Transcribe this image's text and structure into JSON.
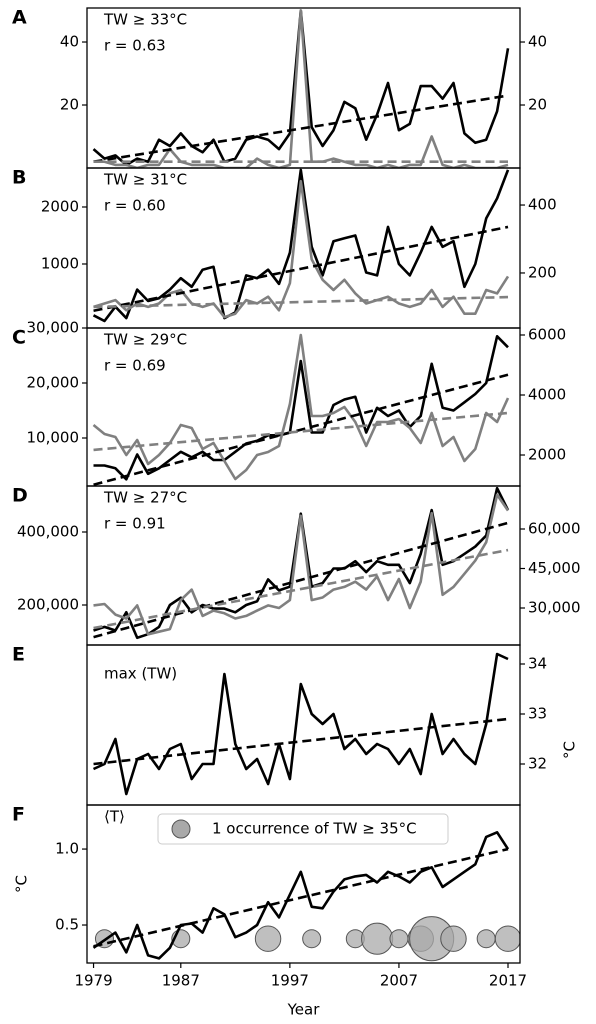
{
  "chart_data": [
    {
      "type": "line",
      "label": "A",
      "annotations": [
        "TW ≥ 33°C",
        "r = 0.63"
      ],
      "x": [
        1979,
        1980,
        1981,
        1982,
        1983,
        1984,
        1985,
        1986,
        1987,
        1988,
        1989,
        1990,
        1991,
        1992,
        1993,
        1994,
        1995,
        1996,
        1997,
        1998,
        1999,
        2000,
        2001,
        2002,
        2003,
        2004,
        2005,
        2006,
        2007,
        2008,
        2009,
        2010,
        2011,
        2012,
        2013,
        2014,
        2015,
        2016,
        2017
      ],
      "xlim": [
        1978.4,
        2018.1
      ],
      "ylim": [
        0,
        50.8
      ],
      "yticks": [
        20,
        40
      ],
      "y2lim": [
        0,
        50.8
      ],
      "y2ticks": [
        20,
        40
      ],
      "series": [
        {
          "color": "#000000",
          "values": [
            6,
            3,
            4,
            1,
            3,
            2,
            9,
            7,
            11,
            7,
            5,
            9,
            2,
            3,
            9,
            10,
            9,
            6,
            11,
            50,
            13,
            7,
            12,
            21,
            19,
            9,
            17,
            27,
            12,
            14,
            26,
            26,
            22,
            27,
            11,
            8,
            9,
            18,
            38
          ],
          "trend": [
            2,
            23
          ]
        },
        {
          "color": "#808080",
          "axis": "y2",
          "values": [
            2,
            2,
            1,
            1,
            0,
            1,
            1,
            6,
            2,
            1,
            1,
            1,
            0,
            0,
            0,
            3,
            1,
            0,
            1,
            50,
            2,
            2,
            3,
            2,
            1,
            1,
            0,
            1,
            0,
            1,
            1,
            10,
            1,
            0,
            1,
            0,
            0,
            0,
            1
          ],
          "trend": [
            2,
            2
          ]
        }
      ]
    },
    {
      "type": "line",
      "label": "B",
      "annotations": [
        "TW ≥ 31°C",
        "r = 0.60"
      ],
      "x": [
        1979,
        1980,
        1981,
        1982,
        1983,
        1984,
        1985,
        1986,
        1987,
        1988,
        1989,
        1990,
        1991,
        1992,
        1993,
        1994,
        1995,
        1996,
        1997,
        1998,
        1999,
        2000,
        2001,
        2002,
        2003,
        2004,
        2005,
        2006,
        2007,
        2008,
        2009,
        2010,
        2011,
        2012,
        2013,
        2014,
        2015,
        2016,
        2017
      ],
      "xlim": [
        1978.4,
        2018.1
      ],
      "ylim": [
        -123,
        2684
      ],
      "yticks": [
        1000,
        2000
      ],
      "y2lim": [
        38,
        509
      ],
      "y2ticks": [
        200,
        400
      ],
      "series": [
        {
          "color": "#000000",
          "values": [
            100,
            0,
            250,
            50,
            550,
            350,
            400,
            550,
            750,
            600,
            900,
            950,
            50,
            150,
            800,
            750,
            900,
            650,
            1200,
            2650,
            1300,
            800,
            1400,
            1450,
            1500,
            850,
            800,
            1650,
            1000,
            800,
            1200,
            1650,
            1300,
            1400,
            600,
            1000,
            1800,
            2150,
            2650
          ],
          "trend": [
            180,
            1650
          ]
        },
        {
          "color": "#808080",
          "axis": "y2",
          "values": [
            100,
            110,
            120,
            90,
            110,
            100,
            110,
            140,
            150,
            110,
            100,
            110,
            70,
            80,
            120,
            110,
            130,
            90,
            170,
            470,
            240,
            180,
            150,
            180,
            140,
            110,
            120,
            130,
            110,
            100,
            110,
            150,
            100,
            130,
            80,
            80,
            150,
            140,
            190
          ],
          "trend": [
            100,
            129
          ]
        }
      ]
    },
    {
      "type": "line",
      "label": "C",
      "annotations": [
        "TW ≥ 29°C",
        "r = 0.69"
      ],
      "x": [
        1979,
        1980,
        1981,
        1982,
        1983,
        1984,
        1985,
        1986,
        1987,
        1988,
        1989,
        1990,
        1991,
        1992,
        1993,
        1994,
        1995,
        1996,
        1997,
        1998,
        1999,
        2000,
        2001,
        2002,
        2003,
        2004,
        2005,
        2006,
        2007,
        2008,
        2009,
        2010,
        2011,
        2012,
        2013,
        2014,
        2015,
        2016,
        2017
      ],
      "xlim": [
        1978.4,
        2018.1
      ],
      "ylim": [
        1273,
        30000
      ],
      "yticks": [
        {
          "value": 10000,
          "label": "10,000"
        },
        {
          "value": 20000,
          "label": "20,000"
        },
        {
          "value": 30000,
          "label": "30,000"
        }
      ],
      "y2lim": [
        967,
        6233
      ],
      "y2ticks": [
        2000,
        4000,
        6000
      ],
      "series": [
        {
          "color": "#000000",
          "values": [
            5000,
            5000,
            4500,
            2500,
            7000,
            3500,
            4500,
            6000,
            7500,
            6500,
            7500,
            6000,
            6000,
            7500,
            9000,
            9500,
            10500,
            10500,
            11000,
            24000,
            11000,
            11000,
            16000,
            17000,
            17500,
            11000,
            15500,
            14000,
            15000,
            12000,
            14000,
            23500,
            15500,
            15000,
            16500,
            18000,
            20000,
            28500,
            26500
          ],
          "trend": [
            1500,
            21500
          ]
        },
        {
          "color": "#808080",
          "axis": "y2",
          "values": [
            3000,
            2700,
            2600,
            2000,
            2500,
            1700,
            2000,
            2400,
            3000,
            2900,
            2200,
            2400,
            1800,
            1200,
            1500,
            2000,
            2100,
            2300,
            3700,
            6000,
            3300,
            3300,
            3400,
            3600,
            3100,
            2300,
            3100,
            3100,
            3200,
            2900,
            2400,
            3400,
            2300,
            2600,
            1800,
            2200,
            3400,
            3100,
            3900
          ],
          "trend": [
            2170,
            3400
          ]
        }
      ]
    },
    {
      "type": "line",
      "label": "D",
      "annotations": [
        "TW ≥ 27°C",
        "r = 0.91"
      ],
      "x": [
        1979,
        1980,
        1981,
        1982,
        1983,
        1984,
        1985,
        1986,
        1987,
        1988,
        1989,
        1990,
        1991,
        1992,
        1993,
        1994,
        1995,
        1996,
        1997,
        1998,
        1999,
        2000,
        2001,
        2002,
        2003,
        2004,
        2005,
        2006,
        2007,
        2008,
        2009,
        2010,
        2011,
        2012,
        2013,
        2014,
        2015,
        2016,
        2017
      ],
      "xlim": [
        1978.4,
        2018.1
      ],
      "ylim": [
        90410,
        526027
      ],
      "yticks": [
        {
          "value": 200000,
          "label": "200,000"
        },
        {
          "value": 400000,
          "label": "400,000"
        }
      ],
      "y2lim": [
        15949,
        76329
      ],
      "y2ticks": [
        {
          "value": 30000,
          "label": "30,000"
        },
        {
          "value": 45000,
          "label": "45,000"
        },
        {
          "value": 60000,
          "label": "60,000"
        }
      ],
      "series": [
        {
          "color": "#000000",
          "values": [
            130000,
            140000,
            130000,
            180000,
            110000,
            120000,
            140000,
            200000,
            220000,
            180000,
            200000,
            190000,
            190000,
            180000,
            200000,
            210000,
            270000,
            240000,
            250000,
            450000,
            250000,
            260000,
            300000,
            300000,
            320000,
            290000,
            320000,
            310000,
            310000,
            260000,
            340000,
            460000,
            310000,
            320000,
            340000,
            360000,
            390000,
            520000,
            460000
          ],
          "trend": [
            112000,
            425000
          ]
        },
        {
          "color": "#808080",
          "axis": "y2",
          "values": [
            31000,
            31500,
            27500,
            26000,
            31000,
            20000,
            21000,
            22000,
            33000,
            37000,
            27000,
            29000,
            28000,
            26000,
            27000,
            29000,
            31000,
            30000,
            33000,
            65000,
            33000,
            34000,
            37000,
            38000,
            40000,
            37000,
            42000,
            33000,
            41000,
            30000,
            40000,
            66000,
            35000,
            38000,
            43000,
            48000,
            55000,
            73000,
            67000
          ],
          "trend": [
            22400,
            52000
          ]
        }
      ]
    },
    {
      "type": "line",
      "label": "E",
      "annotations": [
        "max (TW)"
      ],
      "y2label": "°C",
      "x": [
        1979,
        1980,
        1981,
        1982,
        1983,
        1984,
        1985,
        1986,
        1987,
        1988,
        1989,
        1990,
        1991,
        1992,
        1993,
        1994,
        1995,
        1996,
        1997,
        1998,
        1999,
        2000,
        2001,
        2002,
        2003,
        2004,
        2005,
        2006,
        2007,
        2008,
        2009,
        2010,
        2011,
        2012,
        2013,
        2014,
        2015,
        2016,
        2017
      ],
      "xlim": [
        1978.4,
        2018.1
      ],
      "y2lim": [
        31.18,
        34.38
      ],
      "y2ticks": [
        32,
        33,
        34
      ],
      "series": [
        {
          "color": "#000000",
          "axis": "y2",
          "values": [
            31.9,
            32.0,
            32.5,
            31.4,
            32.1,
            32.2,
            31.9,
            32.3,
            32.4,
            31.7,
            32.0,
            32.0,
            33.8,
            32.4,
            31.9,
            32.1,
            31.6,
            32.4,
            31.7,
            33.6,
            33.0,
            32.8,
            33.0,
            32.3,
            32.5,
            32.2,
            32.4,
            32.3,
            32.0,
            32.3,
            31.8,
            33.0,
            32.2,
            32.5,
            32.2,
            32.0,
            32.8,
            34.2,
            34.1
          ],
          "trend": [
            32.0,
            32.9
          ]
        }
      ]
    },
    {
      "type": "line",
      "label": "F",
      "annotations": [
        "⟨T⟩"
      ],
      "ylabel": "°C",
      "xlabel": "Year",
      "x": [
        1979,
        1980,
        1981,
        1982,
        1983,
        1984,
        1985,
        1986,
        1987,
        1988,
        1989,
        1990,
        1991,
        1992,
        1993,
        1994,
        1995,
        1996,
        1997,
        1998,
        1999,
        2000,
        2001,
        2002,
        2003,
        2004,
        2005,
        2006,
        2007,
        2008,
        2009,
        2010,
        2011,
        2012,
        2013,
        2014,
        2015,
        2016,
        2017
      ],
      "xlim": [
        1978.4,
        2018.1
      ],
      "xticks": [
        1979,
        1987,
        1997,
        2007,
        2017
      ],
      "ylim": [
        0.25,
        1.29
      ],
      "yticks": [
        0.5,
        {
          "value": 1,
          "label": "1.0"
        }
      ],
      "series": [
        {
          "color": "#000000",
          "values": [
            0.35,
            0.4,
            0.45,
            0.32,
            0.5,
            0.3,
            0.28,
            0.35,
            0.5,
            0.51,
            0.45,
            0.61,
            0.57,
            0.42,
            0.45,
            0.5,
            0.65,
            0.55,
            0.7,
            0.85,
            0.62,
            0.61,
            0.72,
            0.8,
            0.82,
            0.83,
            0.78,
            0.85,
            0.82,
            0.78,
            0.85,
            0.88,
            0.75,
            0.8,
            0.85,
            0.9,
            1.08,
            1.11,
            1.0
          ],
          "trend": [
            0.36,
            1.0
          ]
        }
      ],
      "bubbles": {
        "color": "#a9a9a9",
        "y": 0.41,
        "x": [
          1980,
          1987,
          1995,
          1999,
          2003,
          2005,
          2007,
          2009,
          2010,
          2012,
          2015,
          2017
        ],
        "counts": [
          1,
          1,
          2,
          1,
          1,
          3,
          1,
          2,
          6,
          2,
          1,
          2
        ],
        "legend_count": 1,
        "legend_label": "1 occurrence of TW ≥ 35°C"
      }
    }
  ]
}
